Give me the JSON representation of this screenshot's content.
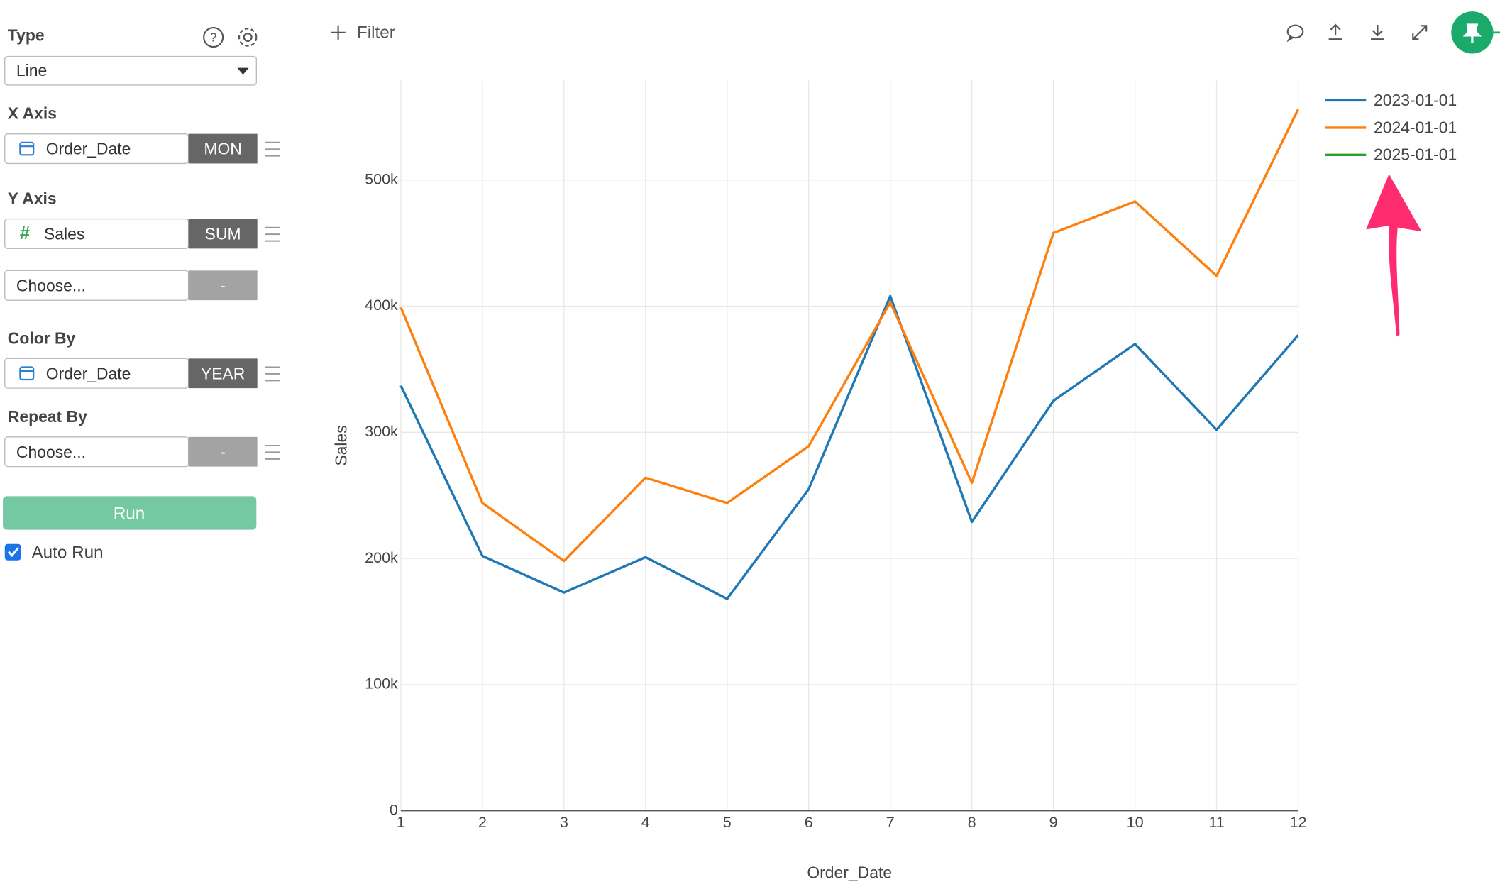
{
  "sidebar": {
    "type": {
      "label": "Type",
      "value": "Line"
    },
    "x_axis": {
      "label": "X Axis",
      "field": "Order_Date",
      "agg": "MON"
    },
    "y_axis": {
      "label": "Y Axis",
      "field": "Sales",
      "agg": "SUM",
      "extra_field": "Choose...",
      "extra_agg": "-"
    },
    "color_by": {
      "label": "Color By",
      "field": "Order_Date",
      "agg": "YEAR"
    },
    "repeat_by": {
      "label": "Repeat By",
      "field": "Choose...",
      "agg": "-"
    },
    "run": "Run",
    "auto_run": "Auto Run"
  },
  "toolbar": {
    "filter": "Filter"
  },
  "chart_data": {
    "type": "line",
    "x_label": "Order_Date",
    "y_label": "Sales",
    "x": [
      1,
      2,
      3,
      4,
      5,
      6,
      7,
      8,
      9,
      10,
      11,
      12
    ],
    "xlim": [
      1,
      12
    ],
    "xticks": [
      1,
      2,
      3,
      4,
      5,
      6,
      7,
      8,
      9,
      10,
      11,
      12
    ],
    "ylim": [
      0,
      579000
    ],
    "yticks": [
      0,
      {
        "value": 100000,
        "label": "100k"
      },
      {
        "value": 200000,
        "label": "200k"
      },
      {
        "value": 300000,
        "label": "300k"
      },
      {
        "value": 400000,
        "label": "400k"
      },
      {
        "value": 500000,
        "label": "500k"
      }
    ],
    "grid": true,
    "legend": "top-right",
    "series": [
      {
        "name": "2023-01-01",
        "color": "#1f77b4",
        "values": [
          337000,
          202000,
          173000,
          201000,
          168000,
          255000,
          408000,
          229000,
          325000,
          370000,
          302000,
          377000
        ]
      },
      {
        "name": "2024-01-01",
        "color": "#ff7f0e",
        "values": [
          399000,
          244000,
          198000,
          264000,
          244000,
          289000,
          403000,
          260000,
          458000,
          483000,
          424000,
          556000
        ]
      },
      {
        "name": "2025-01-01",
        "color": "#2ca02c",
        "values": [
          null,
          null,
          null,
          null,
          null,
          null,
          null,
          null,
          null,
          null,
          null,
          null
        ]
      }
    ]
  }
}
